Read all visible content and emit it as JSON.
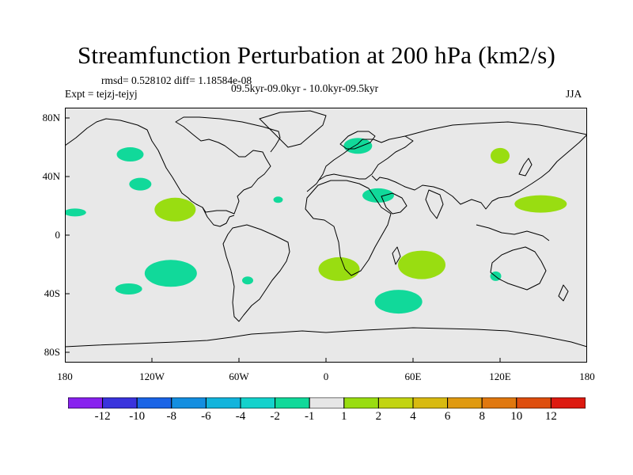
{
  "title": "Streamfunction Perturbation at 200 hPa (km2/s)",
  "header": {
    "rmsd_line": "rmsd= 0.528102 diff= 1.18584e-08",
    "expt_line": "Expt = tejzj-tejyj",
    "period_line": "09.5kyr-09.0kyr - 10.0kyr-09.5kyr",
    "season": "JJA"
  },
  "axes": {
    "x_ticks": [
      "180",
      "120W",
      "60W",
      "0",
      "60E",
      "120E",
      "180"
    ],
    "y_ticks": [
      "80N",
      "40N",
      "0",
      "40S",
      "80S"
    ]
  },
  "colors": {
    "ocean": "#e8e8e8",
    "neg1": "#11d99a",
    "pos1": "#99dd11",
    "coast": "#000000"
  },
  "anomalies": [
    {
      "sign": "neg",
      "lon": -135,
      "lat": 57
    },
    {
      "sign": "neg",
      "lon": -128,
      "lat": 36
    },
    {
      "sign": "neg",
      "lon": -173,
      "lat": 16
    },
    {
      "sign": "pos",
      "lon": -104,
      "lat": 18
    },
    {
      "sign": "neg",
      "lon": -33,
      "lat": 25
    },
    {
      "sign": "neg",
      "lon": 22,
      "lat": 63
    },
    {
      "sign": "neg",
      "lon": 36,
      "lat": 28
    },
    {
      "sign": "pos",
      "lon": 120,
      "lat": 56
    },
    {
      "sign": "pos",
      "lon": 148,
      "lat": 22
    },
    {
      "sign": "neg",
      "lon": -107,
      "lat": -27
    },
    {
      "sign": "neg",
      "lon": -136,
      "lat": -38
    },
    {
      "sign": "neg",
      "lon": -54,
      "lat": -32
    },
    {
      "sign": "pos",
      "lon": 9,
      "lat": -24
    },
    {
      "sign": "pos",
      "lon": 66,
      "lat": -21
    },
    {
      "sign": "neg",
      "lon": 117,
      "lat": -29
    },
    {
      "sign": "neg",
      "lon": 50,
      "lat": -47
    }
  ],
  "colorbar": {
    "colors": [
      "#8822ee",
      "#3a33dd",
      "#1a64e6",
      "#148ee0",
      "#12b4dc",
      "#14d2cc",
      "#11d99a",
      "#e6e6e6",
      "#99dd11",
      "#c2d411",
      "#d8ba10",
      "#e09a10",
      "#e0780f",
      "#de4e0e",
      "#dd1a10"
    ],
    "labels": [
      "-12",
      "-10",
      "-8",
      "-6",
      "-4",
      "-2",
      "-1",
      "1",
      "2",
      "4",
      "6",
      "8",
      "10",
      "12"
    ]
  }
}
